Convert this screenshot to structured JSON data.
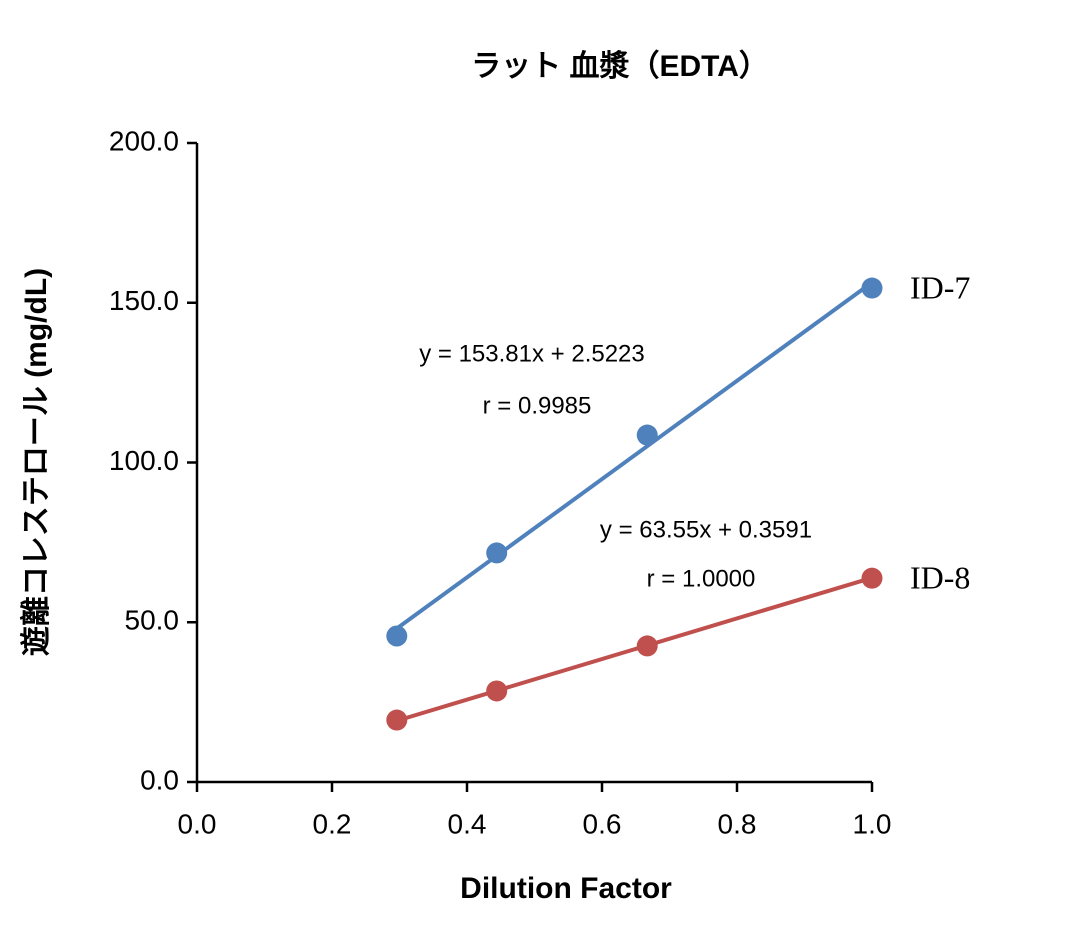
{
  "chart_data": {
    "type": "scatter",
    "title": "ラット 血漿（EDTA）",
    "x_label": "Dilution Factor",
    "y_label": "遊離コレステロール (mg/dL)",
    "xlim": [
      0,
      1
    ],
    "ylim": [
      0,
      200
    ],
    "xticks": [
      {
        "value": 0,
        "label": "0.0"
      },
      {
        "value": 0.2,
        "label": "0.2"
      },
      {
        "value": 0.4,
        "label": "0.4"
      },
      {
        "value": 0.6,
        "label": "0.6"
      },
      {
        "value": 0.8,
        "label": "0.8"
      },
      {
        "value": 1,
        "label": "1.0"
      }
    ],
    "yticks": [
      {
        "value": 0,
        "label": "0.0"
      },
      {
        "value": 50,
        "label": "50.0"
      },
      {
        "value": 100,
        "label": "100.0"
      },
      {
        "value": 150,
        "label": "150.0"
      },
      {
        "value": 200,
        "label": "200.0"
      }
    ],
    "grid": false,
    "series": [
      {
        "name": "ID-7",
        "color": "#4f81bd",
        "x": [
          0.296,
          0.444,
          0.667,
          1
        ],
        "values": [
          45.7,
          71.7,
          108.6,
          154.6
        ],
        "trendline": {
          "slope": 153.81,
          "intercept": 2.5223
        },
        "equation": "y = 153.81x + 2.5223",
        "r": "r = 0.9985"
      },
      {
        "name": "ID-8",
        "color": "#c0504d",
        "x": [
          0.296,
          0.444,
          0.667,
          1
        ],
        "values": [
          19.4,
          28.5,
          42.6,
          63.8
        ],
        "trendline": {
          "slope": 63.55,
          "intercept": 0.3591
        },
        "equation": "y = 63.55x + 0.3591",
        "r": "r = 1.0000"
      }
    ]
  }
}
